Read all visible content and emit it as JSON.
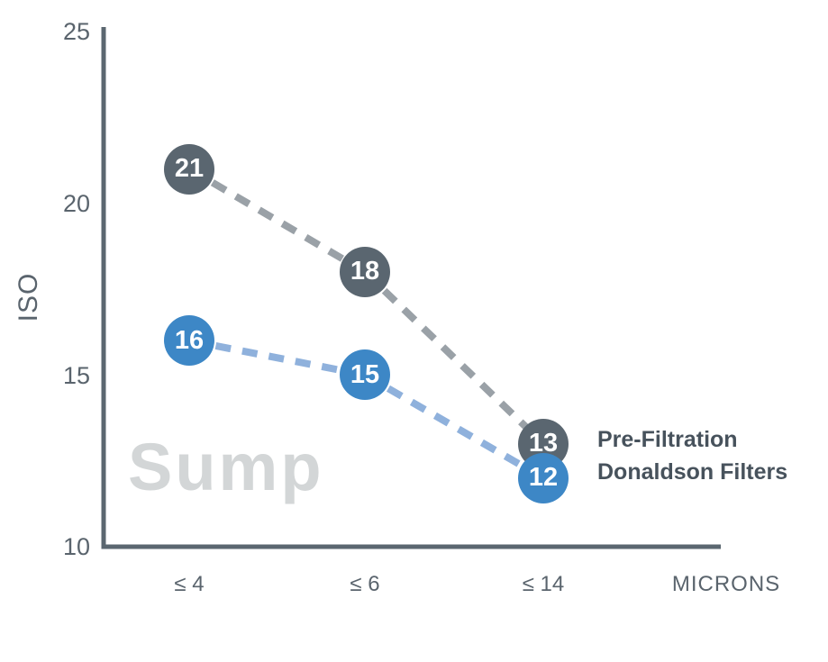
{
  "chart_data": {
    "type": "line",
    "title": "",
    "categories": [
      "≤ 4",
      "≤ 6",
      "≤ 14"
    ],
    "series": [
      {
        "name": "Pre-Filtration",
        "values": [
          21,
          18,
          13
        ],
        "marker_color": "#5a6670",
        "line_color": "#9aa1a7"
      },
      {
        "name": "Donaldson Filters",
        "values": [
          16,
          15,
          12
        ],
        "marker_color": "#3d87c6",
        "line_color": "#8fb1dc"
      }
    ],
    "ylabel": "ISO",
    "xlabel": "MICRONS",
    "ylim": [
      10,
      25
    ],
    "yticks": [
      25,
      20,
      15,
      10
    ],
    "grid": false,
    "legend_position": "right-of-last-points",
    "watermark": "Sump",
    "axis_color": "#5b6770",
    "line_style": "dashed"
  }
}
